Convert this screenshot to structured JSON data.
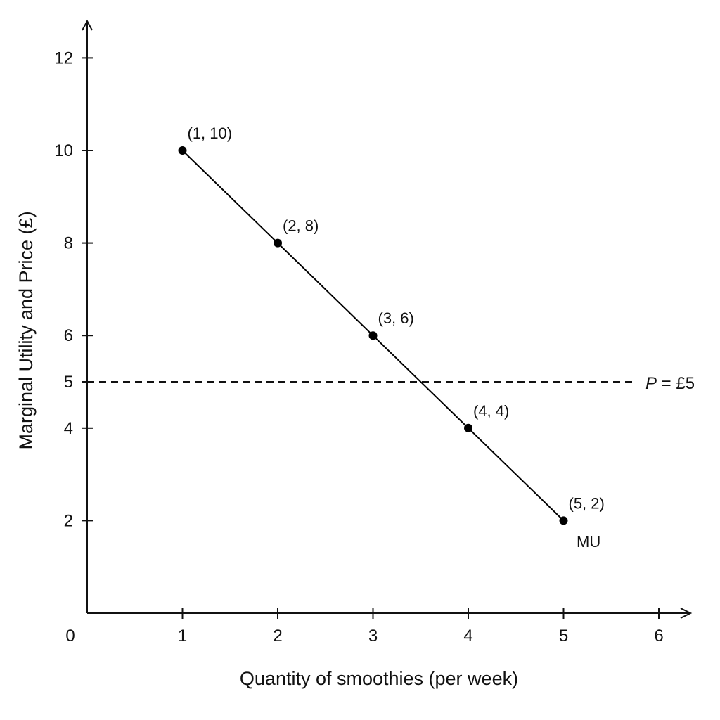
{
  "chart_data": {
    "type": "line",
    "title": "",
    "xlabel": "Quantity of smoothies (per week)",
    "ylabel": "Marginal Utility and Price (£)",
    "origin_label": "0",
    "xlim": [
      0,
      6
    ],
    "ylim": [
      0,
      12
    ],
    "x_ticks": [
      1,
      2,
      3,
      4,
      5,
      6
    ],
    "y_ticks": [
      2,
      4,
      5,
      6,
      8,
      10,
      12
    ],
    "grid": false,
    "series": [
      {
        "name": "MU",
        "color": "#000000",
        "points": [
          {
            "x": 1,
            "y": 10,
            "label": "(1, 10)"
          },
          {
            "x": 2,
            "y": 8,
            "label": "(2, 8)"
          },
          {
            "x": 3,
            "y": 6,
            "label": "(3, 6)"
          },
          {
            "x": 4,
            "y": 4,
            "label": "(4, 4)"
          },
          {
            "x": 5,
            "y": 2,
            "label": "(5, 2)"
          }
        ]
      }
    ],
    "reference_lines": [
      {
        "orientation": "horizontal",
        "y": 5,
        "style": "dashed",
        "label_var": "P",
        "label_rest": " = £5"
      }
    ]
  }
}
